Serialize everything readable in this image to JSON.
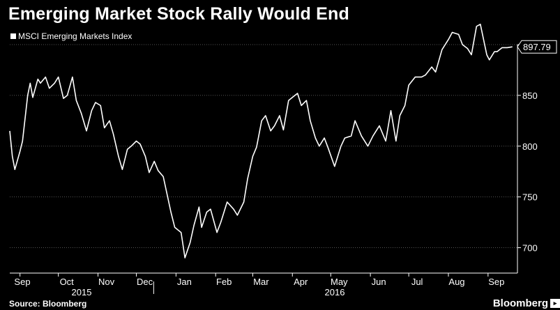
{
  "title": "Emerging Market Stock Rally Would End",
  "legend": {
    "label": "MSCI Emerging Markets Index"
  },
  "source": "Source: Bloomberg",
  "brand": "Bloomberg",
  "colors": {
    "background": "#000000",
    "line": "#ffffff",
    "grid": "#555555"
  },
  "chart_data": {
    "type": "line",
    "title": "Emerging Market Stock Rally Would End",
    "xlabel": "",
    "ylabel": "",
    "ylim": [
      675,
      900
    ],
    "yticks": [
      700,
      750,
      800,
      850
    ],
    "xtick_labels": [
      "Sep",
      "Oct",
      "Nov",
      "Dec",
      "Jan",
      "Feb",
      "Mar",
      "Apr",
      "May",
      "Jun",
      "Jul",
      "Aug",
      "Sep"
    ],
    "x_year_labels": [
      "2015",
      "2016"
    ],
    "last_value_label": "897.79",
    "grid": "horizontal dotted",
    "legend_position": "top-left",
    "series": [
      {
        "name": "MSCI Emerging Markets Index",
        "color": "#ffffff",
        "x": [
          "2015-08-24",
          "2015-08-26",
          "2015-08-28",
          "2015-09-01",
          "2015-09-03",
          "2015-09-07",
          "2015-09-09",
          "2015-09-11",
          "2015-09-15",
          "2015-09-17",
          "2015-09-21",
          "2015-09-24",
          "2015-09-28",
          "2015-10-01",
          "2015-10-05",
          "2015-10-08",
          "2015-10-12",
          "2015-10-15",
          "2015-10-19",
          "2015-10-23",
          "2015-10-27",
          "2015-10-30",
          "2015-11-03",
          "2015-11-06",
          "2015-11-10",
          "2015-11-13",
          "2015-11-17",
          "2015-11-20",
          "2015-11-24",
          "2015-11-27",
          "2015-12-01",
          "2015-12-04",
          "2015-12-08",
          "2015-12-11",
          "2015-12-15",
          "2015-12-18",
          "2015-12-22",
          "2015-12-28",
          "2015-12-31",
          "2016-01-05",
          "2016-01-08",
          "2016-01-12",
          "2016-01-15",
          "2016-01-19",
          "2016-01-21",
          "2016-01-25",
          "2016-01-28",
          "2016-02-02",
          "2016-02-05",
          "2016-02-10",
          "2016-02-15",
          "2016-02-18",
          "2016-02-23",
          "2016-02-26",
          "2016-03-01",
          "2016-03-04",
          "2016-03-08",
          "2016-03-11",
          "2016-03-15",
          "2016-03-18",
          "2016-03-22",
          "2016-03-25",
          "2016-03-29",
          "2016-04-01",
          "2016-04-05",
          "2016-04-08",
          "2016-04-12",
          "2016-04-15",
          "2016-04-19",
          "2016-04-22",
          "2016-04-26",
          "2016-04-29",
          "2016-05-04",
          "2016-05-09",
          "2016-05-12",
          "2016-05-17",
          "2016-05-20",
          "2016-05-25",
          "2016-05-30",
          "2016-06-03",
          "2016-06-08",
          "2016-06-13",
          "2016-06-17",
          "2016-06-21",
          "2016-06-24",
          "2016-06-28",
          "2016-07-01",
          "2016-07-06",
          "2016-07-11",
          "2016-07-14",
          "2016-07-19",
          "2016-07-22",
          "2016-07-27",
          "2016-08-01",
          "2016-08-04",
          "2016-08-09",
          "2016-08-12",
          "2016-08-16",
          "2016-08-19",
          "2016-08-23",
          "2016-08-26",
          "2016-08-31",
          "2016-09-02",
          "2016-09-06",
          "2016-09-08",
          "2016-09-12",
          "2016-09-14",
          "2016-09-16",
          "2016-09-20"
        ],
        "values": [
          815,
          790,
          777,
          795,
          805,
          850,
          862,
          848,
          866,
          862,
          868,
          857,
          862,
          868,
          847,
          850,
          868,
          845,
          832,
          815,
          835,
          843,
          840,
          818,
          825,
          812,
          790,
          777,
          797,
          800,
          805,
          802,
          790,
          774,
          785,
          776,
          770,
          735,
          720,
          715,
          690,
          705,
          722,
          740,
          720,
          735,
          738,
          715,
          725,
          745,
          738,
          732,
          745,
          768,
          790,
          799,
          825,
          830,
          815,
          820,
          830,
          816,
          845,
          848,
          852,
          840,
          845,
          825,
          808,
          800,
          808,
          798,
          780,
          800,
          808,
          810,
          825,
          810,
          800,
          810,
          820,
          805,
          835,
          805,
          830,
          840,
          860,
          868,
          868,
          870,
          878,
          873,
          895,
          905,
          912,
          910,
          900,
          896,
          890,
          918,
          920,
          890,
          885,
          893,
          893,
          897,
          897,
          897,
          897.79
        ]
      }
    ]
  }
}
